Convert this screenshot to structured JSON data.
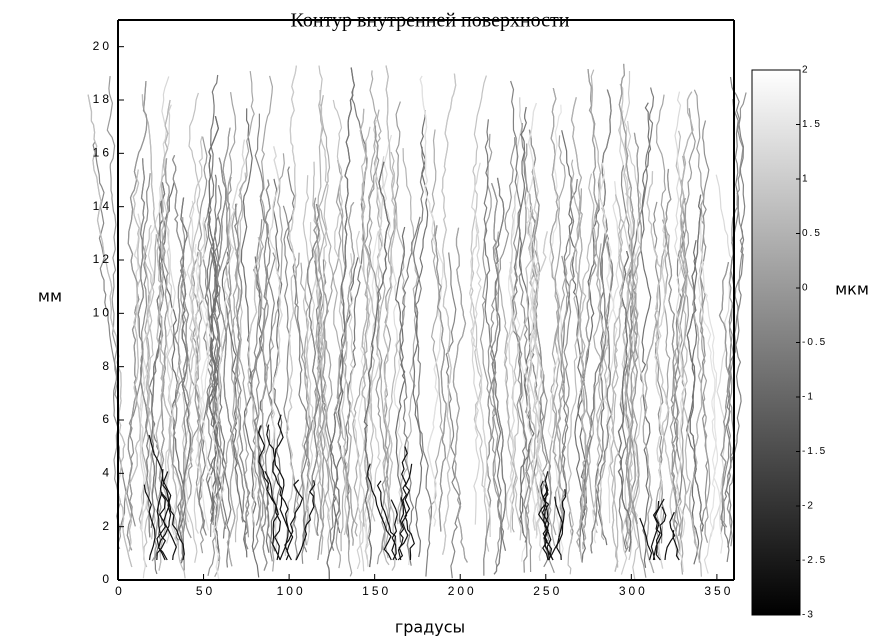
{
  "chart_data": {
    "type": "contour",
    "title": "Контур внутренней поверхности",
    "xlabel": "градусы",
    "ylabel": "мм",
    "colorbar_label": "мкм",
    "xlim": [
      0,
      360
    ],
    "xticks": [
      0,
      50,
      100,
      150,
      200,
      250,
      300,
      350
    ],
    "ylim": [
      0,
      21
    ],
    "yticks": [
      0,
      2,
      4,
      6,
      8,
      10,
      12,
      14,
      16,
      18,
      20
    ],
    "clim": [
      -3,
      2
    ],
    "cticks": [
      -3,
      -2.5,
      -2,
      -1.5,
      -1,
      -0.5,
      0,
      0.5,
      1,
      1.5,
      2
    ],
    "colormap": [
      "#000000",
      "#ffffff"
    ]
  }
}
